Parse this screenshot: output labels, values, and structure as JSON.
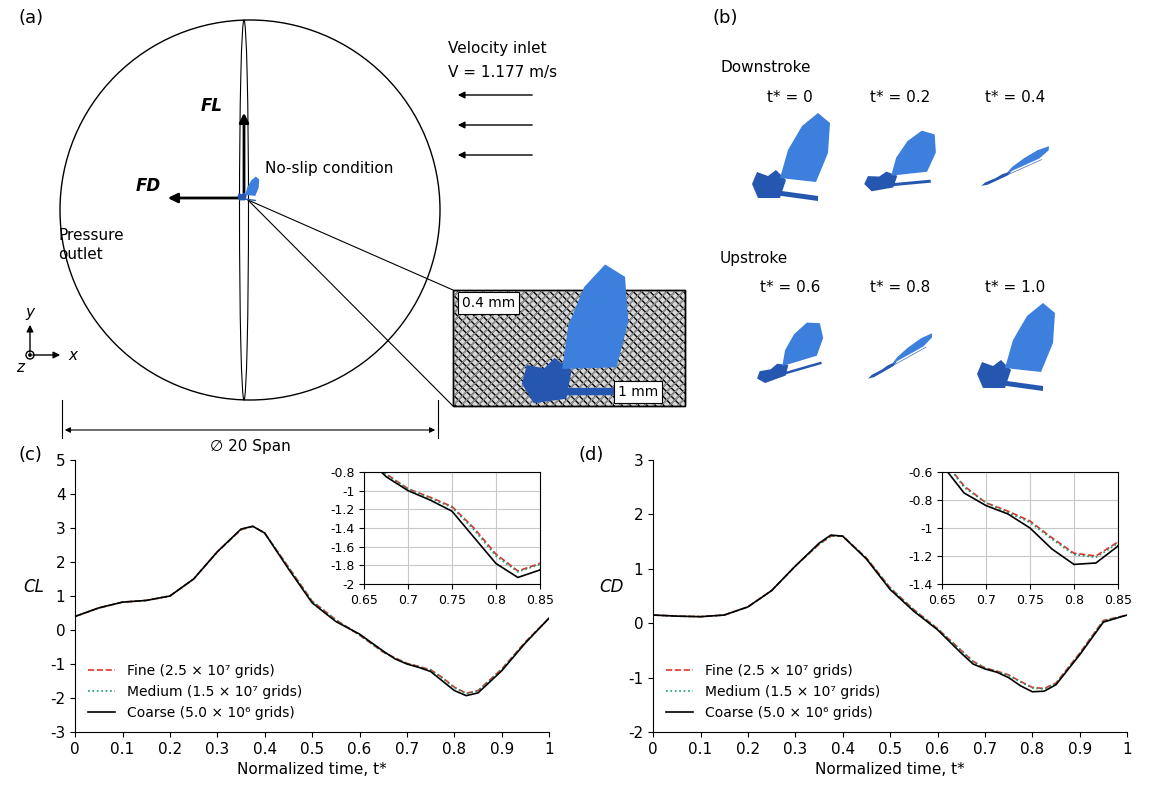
{
  "panel_labels": [
    "(a)",
    "(b)"
  ],
  "diagram": {
    "velocity_inlet": "Velocity inlet",
    "velocity": "V = 1.177 m/s",
    "no_slip": "No-slip condition",
    "pressure_outlet": "Pressure\noutlet",
    "lift_force": "FL",
    "drag_force": "FD",
    "mesh_labels": [
      "0.4 mm",
      "1 mm"
    ],
    "domain_size": "∅ 20 Span",
    "axes": [
      "x",
      "y",
      "z"
    ]
  },
  "wing_kinematics": [
    {
      "name": "Downstroke",
      "frames": [
        "t* = 0",
        "t* = 0.2",
        "t* = 0.4"
      ]
    },
    {
      "name": "Upstroke",
      "frames": [
        "t* = 0.6",
        "t* = 0.8",
        "t* = 1.0"
      ]
    }
  ],
  "chart_data": [
    {
      "type": "line",
      "panel_label": "(c)",
      "x_label": "Normalized time, t*",
      "y_label": "CL",
      "x": [
        0,
        0.05,
        0.1,
        0.15,
        0.2,
        0.25,
        0.3,
        0.35,
        0.375,
        0.4,
        0.45,
        0.5,
        0.55,
        0.6,
        0.65,
        0.675,
        0.7,
        0.725,
        0.75,
        0.775,
        0.8,
        0.825,
        0.85,
        0.9,
        0.95,
        1.0
      ],
      "series": [
        {
          "name": "Fine (2.5 × 10⁷ grids)",
          "color": "#e0322b",
          "line_style": "dashed",
          "values": [
            0.4,
            0.65,
            0.82,
            0.87,
            1.0,
            1.5,
            2.3,
            2.95,
            3.05,
            2.85,
            1.85,
            0.85,
            0.3,
            -0.15,
            -0.65,
            -0.82,
            -0.98,
            -1.07,
            -1.17,
            -1.4,
            -1.68,
            -1.86,
            -1.78,
            -1.15,
            -0.35,
            0.35
          ]
        },
        {
          "name": "Medium (1.5 × 10⁷ grids)",
          "color": "#1a9a6c",
          "line_style": "dotted",
          "values": [
            0.4,
            0.65,
            0.82,
            0.87,
            1.0,
            1.5,
            2.3,
            2.95,
            3.05,
            2.85,
            1.85,
            0.85,
            0.3,
            -0.15,
            -0.65,
            -0.83,
            -0.98,
            -1.08,
            -1.18,
            -1.42,
            -1.7,
            -1.87,
            -1.79,
            -1.16,
            -0.36,
            0.35
          ]
        },
        {
          "name": "Coarse (5.0 × 10⁶ grids)",
          "color": "#000000",
          "line_style": "solid",
          "values": [
            0.4,
            0.65,
            0.82,
            0.87,
            1.0,
            1.5,
            2.3,
            2.97,
            3.05,
            2.85,
            1.8,
            0.8,
            0.25,
            -0.12,
            -0.62,
            -0.85,
            -1.0,
            -1.1,
            -1.22,
            -1.5,
            -1.78,
            -1.93,
            -1.85,
            -1.2,
            -0.38,
            0.35
          ]
        }
      ],
      "xlim": [
        0,
        1
      ],
      "xticks": [
        0,
        0.1,
        0.2,
        0.3,
        0.4,
        0.5,
        0.6,
        0.7,
        0.8,
        0.9,
        1
      ],
      "ylim": [
        -3,
        5
      ],
      "yticks": [
        -3,
        -2,
        -1,
        0,
        1,
        2,
        3,
        4,
        5
      ],
      "legend": "lower left",
      "inset": {
        "xlim": [
          0.65,
          0.85
        ],
        "xticks": [
          0.65,
          0.7,
          0.75,
          0.8,
          0.85
        ],
        "ylim": [
          -2,
          -0.8
        ],
        "yticks": [
          -2,
          -1.8,
          -1.6,
          -1.4,
          -1.2,
          -1,
          -0.8
        ],
        "grid": true
      }
    },
    {
      "type": "line",
      "panel_label": "(d)",
      "x_label": "Normalized time, t*",
      "y_label": "CD",
      "x": [
        0,
        0.05,
        0.1,
        0.15,
        0.2,
        0.25,
        0.3,
        0.35,
        0.375,
        0.4,
        0.45,
        0.5,
        0.55,
        0.6,
        0.65,
        0.675,
        0.7,
        0.725,
        0.75,
        0.775,
        0.8,
        0.825,
        0.85,
        0.9,
        0.95,
        1.0
      ],
      "series": [
        {
          "name": "Fine (2.5 × 10⁷ grids)",
          "color": "#e0322b",
          "line_style": "dashed",
          "values": [
            0.15,
            0.13,
            0.12,
            0.15,
            0.3,
            0.6,
            1.05,
            1.45,
            1.6,
            1.6,
            1.2,
            0.65,
            0.25,
            -0.1,
            -0.5,
            -0.7,
            -0.82,
            -0.88,
            -0.95,
            -1.07,
            -1.18,
            -1.2,
            -1.1,
            -0.55,
            0.05,
            0.15
          ]
        },
        {
          "name": "Medium (1.5 × 10⁷ grids)",
          "color": "#1a9a6c",
          "line_style": "dotted",
          "values": [
            0.15,
            0.13,
            0.12,
            0.15,
            0.3,
            0.6,
            1.05,
            1.45,
            1.6,
            1.6,
            1.2,
            0.65,
            0.25,
            -0.1,
            -0.5,
            -0.71,
            -0.82,
            -0.89,
            -0.96,
            -1.08,
            -1.19,
            -1.21,
            -1.11,
            -0.56,
            0.05,
            0.15
          ]
        },
        {
          "name": "Coarse (5.0 × 10⁶ grids)",
          "color": "#000000",
          "line_style": "solid",
          "values": [
            0.15,
            0.13,
            0.12,
            0.15,
            0.3,
            0.6,
            1.05,
            1.47,
            1.62,
            1.6,
            1.18,
            0.62,
            0.22,
            -0.12,
            -0.55,
            -0.75,
            -0.84,
            -0.9,
            -1.0,
            -1.15,
            -1.26,
            -1.25,
            -1.13,
            -0.58,
            0.02,
            0.15
          ]
        }
      ],
      "xlim": [
        0,
        1
      ],
      "xticks": [
        0,
        0.1,
        0.2,
        0.3,
        0.4,
        0.5,
        0.6,
        0.7,
        0.8,
        0.9,
        1
      ],
      "ylim": [
        -2,
        3
      ],
      "yticks": [
        -2,
        -1,
        0,
        1,
        2,
        3
      ],
      "legend": "lower left",
      "inset": {
        "xlim": [
          0.65,
          0.85
        ],
        "xticks": [
          0.65,
          0.7,
          0.75,
          0.8,
          0.85
        ],
        "ylim": [
          -1.4,
          -0.6
        ],
        "yticks": [
          -1.4,
          -1.2,
          -1,
          -0.8,
          -0.6
        ],
        "grid": true
      }
    }
  ]
}
